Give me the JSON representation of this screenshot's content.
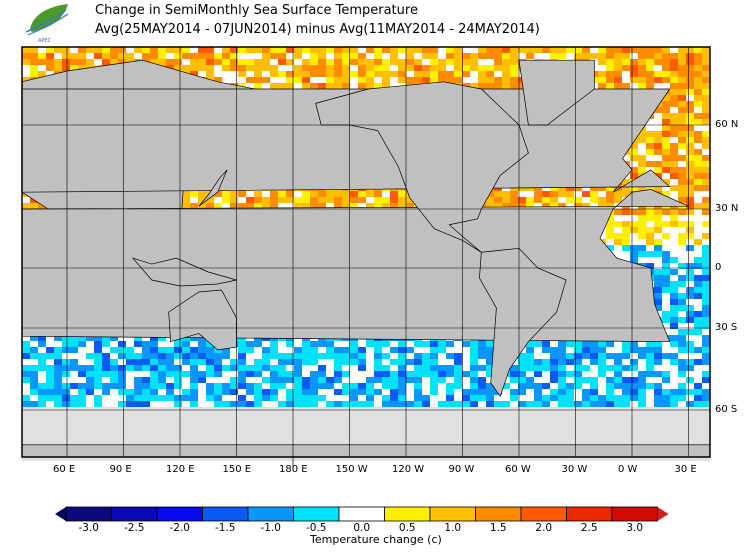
{
  "title": "Change in SemiMonthly Sea Surface Temperature",
  "subtitle": "Avg(25MAY2014 - 07JUN2014) minus Avg(11MAY2014 - 24MAY2014)",
  "logo": {
    "icon": "leaf-wave-logo",
    "text": "APEC"
  },
  "map": {
    "projection": "global, centered on Pacific",
    "land_color": "#c0c0c0",
    "sea_ice_color": "#e0e0e0",
    "lon_labels": [
      "60 E",
      "90 E",
      "120 E",
      "150 E",
      "180 E",
      "150 W",
      "120 W",
      "90 W",
      "60 W",
      "30 W",
      "0 W",
      "30 E"
    ],
    "lat_labels": [
      "60 N",
      "30 N",
      "0",
      "30 S",
      "60 S"
    ]
  },
  "colorbar": {
    "title": "Temperature change  (c)",
    "ticks": [
      "-3.0",
      "-2.5",
      "-2.0",
      "-1.5",
      "-1.0",
      "-0.5",
      "0.0",
      "0.5",
      "1.0",
      "1.5",
      "2.0",
      "2.5",
      "3.0"
    ],
    "colors": [
      "#0a0a7a",
      "#0a0ab4",
      "#0a0af0",
      "#0a5af5",
      "#0a96fa",
      "#00e1fa",
      "#ffffff",
      "#fff000",
      "#ffbe00",
      "#ff8c00",
      "#ff5a00",
      "#f02800",
      "#d20a00"
    ],
    "under_color": "#05055a",
    "over_color": "#d21e1e"
  }
}
